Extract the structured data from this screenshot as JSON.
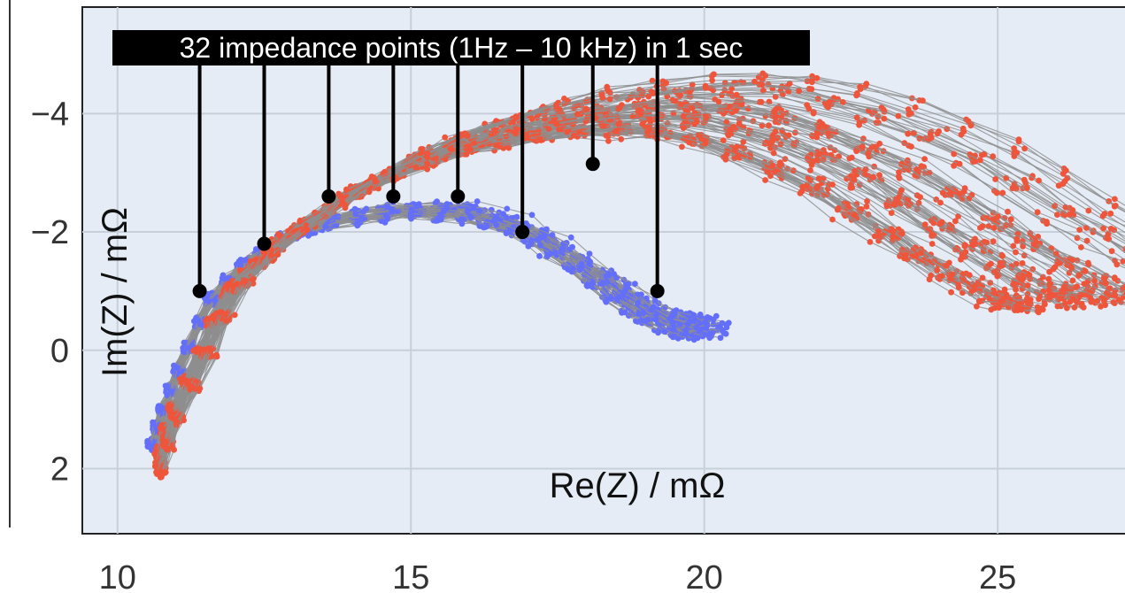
{
  "chart_data": {
    "type": "scatter",
    "title": "",
    "xlabel": "Re(Z) / mΩ",
    "ylabel": "Im(Z) / mΩ",
    "xlim": [
      9.4,
      27.2
    ],
    "ylim": [
      3.1,
      -5.8
    ],
    "y_reversed": true,
    "grid": true,
    "x_ticks": [
      "10",
      "15",
      "20",
      "25"
    ],
    "x_tick_values": [
      10,
      15,
      20,
      25
    ],
    "y_ticks": [
      "−4",
      "−2",
      "0",
      "2"
    ],
    "y_tick_values": [
      -4,
      -2,
      0,
      2
    ],
    "annotation": {
      "text": "32 impedance points (1Hz – 10 kHz) in 1 sec",
      "points": [
        {
          "x": 11.4,
          "y": -1.0
        },
        {
          "x": 12.5,
          "y": -1.8
        },
        {
          "x": 13.6,
          "y": -2.6
        },
        {
          "x": 14.7,
          "y": -2.6
        },
        {
          "x": 15.8,
          "y": -2.6
        },
        {
          "x": 16.9,
          "y": -2.0
        },
        {
          "x": 18.1,
          "y": -3.15
        },
        {
          "x": 19.2,
          "y": -1.0
        }
      ]
    },
    "series": [
      {
        "color": "#636efa",
        "spectra": [
          {
            "scale": 1.0,
            "count": 26
          },
          {
            "scale": 1.02,
            "count": 22
          }
        ],
        "arc": [
          [
            10.6,
            1.7
          ],
          [
            10.8,
            1.0
          ],
          [
            11.1,
            0.2
          ],
          [
            11.5,
            -0.8
          ],
          [
            12.1,
            -1.5
          ],
          [
            12.8,
            -2.0
          ],
          [
            13.7,
            -2.35
          ],
          [
            14.8,
            -2.5
          ],
          [
            15.8,
            -2.5
          ],
          [
            16.7,
            -2.25
          ],
          [
            17.5,
            -1.8
          ],
          [
            18.3,
            -1.2
          ],
          [
            19.0,
            -0.7
          ],
          [
            19.6,
            -0.4
          ],
          [
            20.0,
            -0.45
          ]
        ]
      },
      {
        "color": "#ef553b",
        "spectra": [
          {
            "scale": 1.08,
            "count": 26
          },
          {
            "scale": 1.16,
            "count": 24
          },
          {
            "scale": 1.24,
            "count": 20
          },
          {
            "scale": 1.33,
            "count": 14
          },
          {
            "scale": 1.4,
            "count": 8
          }
        ],
        "arc": [
          [
            10.7,
            1.7
          ],
          [
            10.9,
            1.0
          ],
          [
            11.3,
            0.1
          ],
          [
            11.7,
            -0.9
          ],
          [
            12.3,
            -1.6
          ],
          [
            13.2,
            -2.3
          ],
          [
            14.2,
            -2.9
          ],
          [
            15.3,
            -3.35
          ],
          [
            16.4,
            -3.6
          ],
          [
            17.6,
            -3.75
          ],
          [
            18.8,
            -3.7
          ],
          [
            20.0,
            -3.3
          ],
          [
            21.2,
            -2.7
          ],
          [
            22.3,
            -1.9
          ],
          [
            23.2,
            -1.3
          ],
          [
            23.9,
            -0.9
          ],
          [
            24.4,
            -0.8
          ]
        ]
      }
    ]
  }
}
